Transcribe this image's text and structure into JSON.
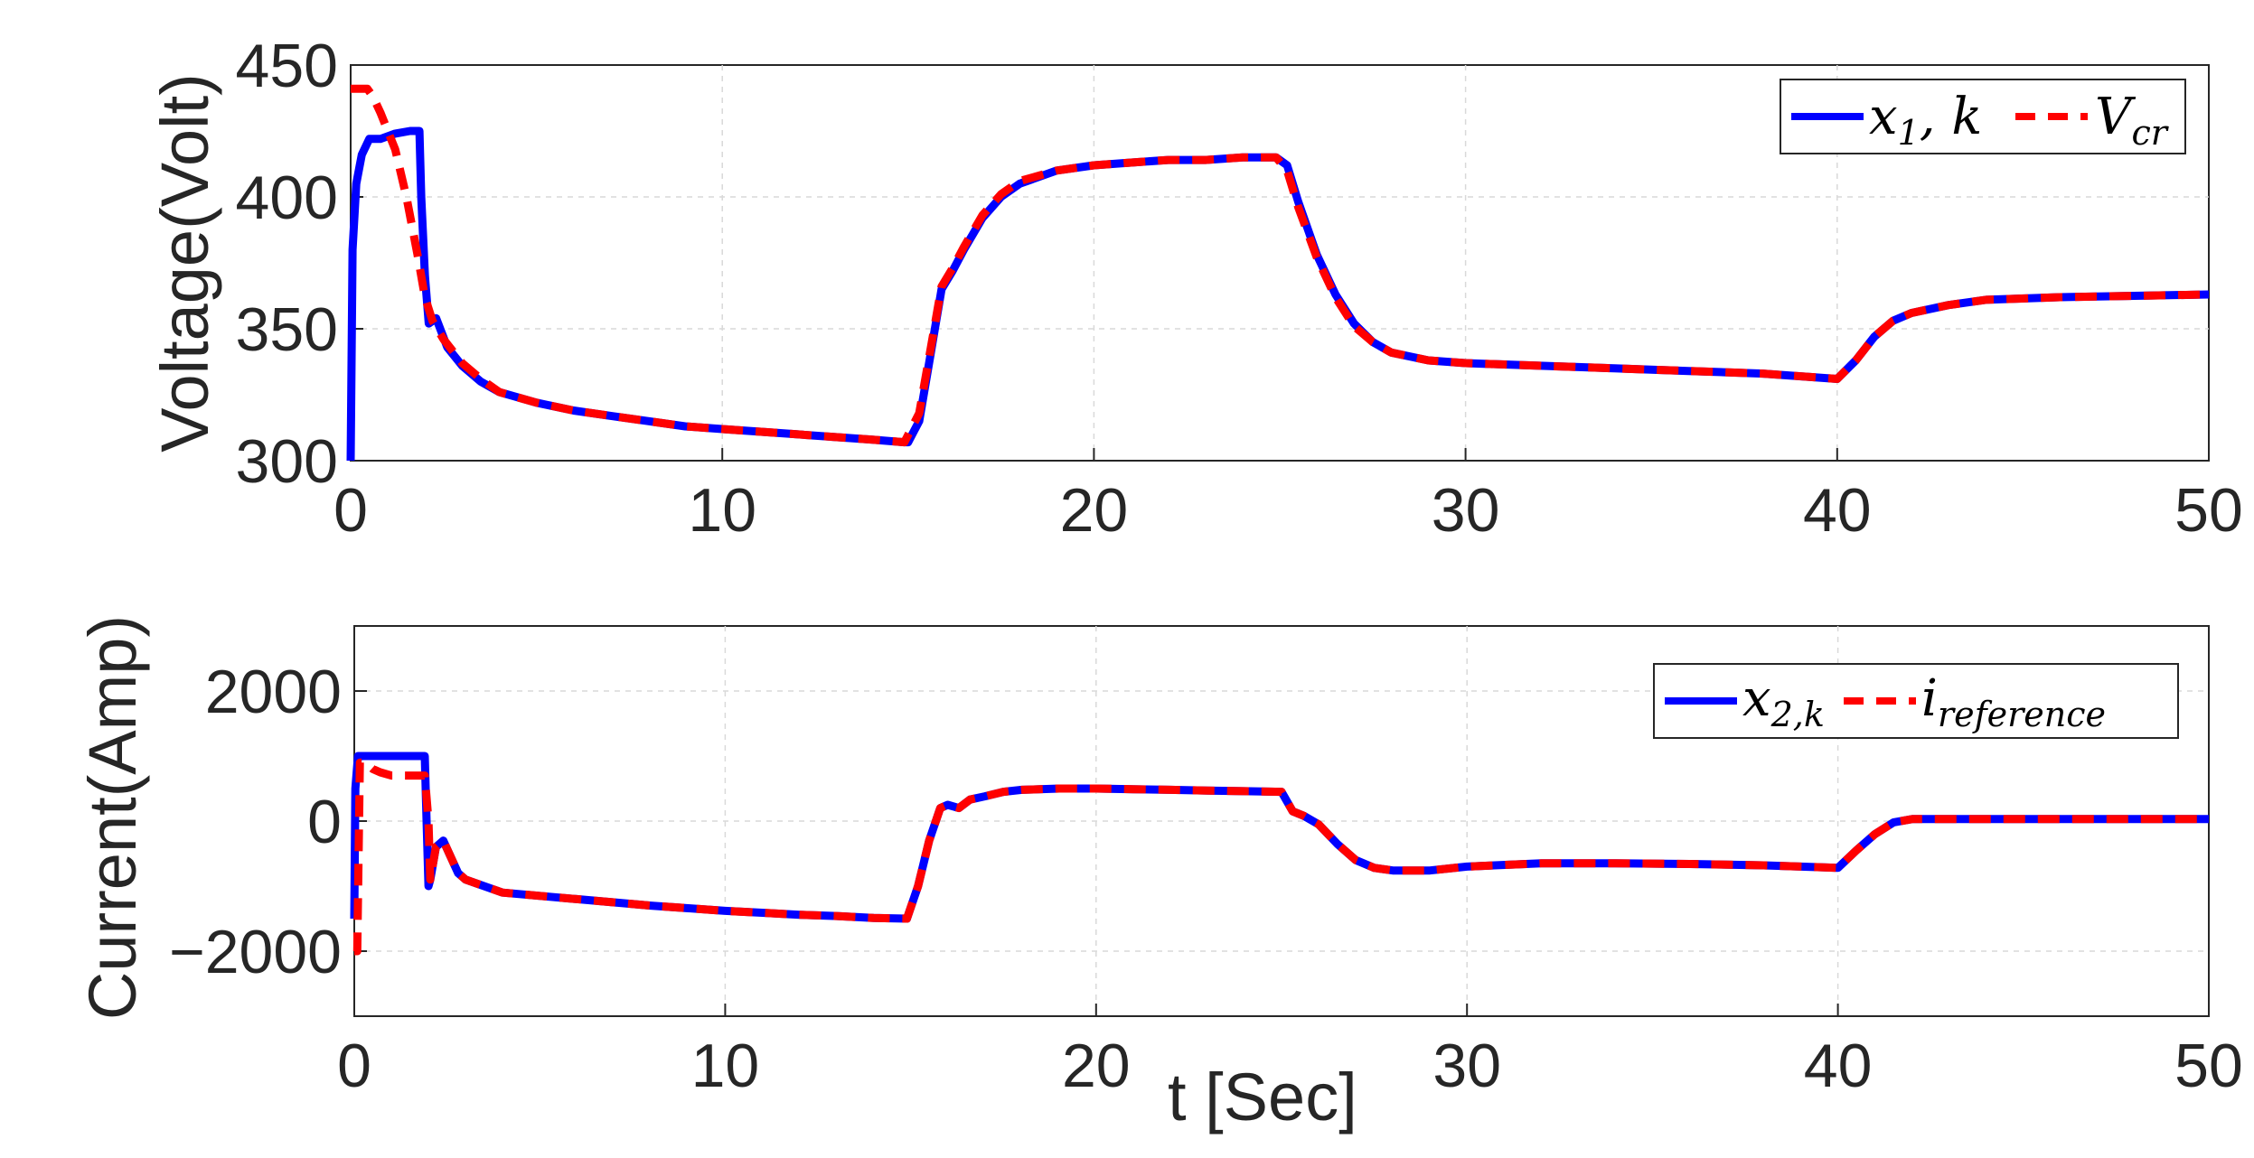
{
  "chart_data": [
    {
      "type": "line",
      "xlabel": "",
      "ylabel": "Voltage(Volt)",
      "xlim": [
        0,
        50
      ],
      "ylim": [
        300,
        450
      ],
      "xticks": [
        "0",
        "10",
        "20",
        "30",
        "40",
        "50"
      ],
      "yticks": [
        "300",
        "350",
        "400",
        "450"
      ],
      "grid": true,
      "legend": "top-right",
      "series": [
        {
          "name": "x1, k",
          "legend_main": "x",
          "legend_sub": "1",
          "legend_tail": ", k",
          "color": "#0000ff",
          "style": "solid",
          "x": [
            0,
            0.05,
            0.15,
            0.3,
            0.5,
            0.8,
            1.2,
            1.6,
            1.85,
            1.9,
            2.0,
            2.1,
            2.3,
            2.6,
            3.0,
            3.5,
            4,
            5,
            6,
            7,
            8,
            9,
            10,
            11,
            12,
            13,
            14,
            14.9,
            15.0,
            15.3,
            15.6,
            15.9,
            16.2,
            16.5,
            17,
            17.5,
            18,
            19,
            20,
            21,
            22,
            23,
            24,
            24.9,
            25.2,
            25.5,
            26,
            26.5,
            27,
            27.5,
            28,
            29,
            30,
            32,
            34,
            36,
            38,
            40,
            40.5,
            41,
            41.5,
            42,
            43,
            44,
            46,
            48,
            50
          ],
          "y": [
            300,
            380,
            405,
            416,
            422,
            422,
            424,
            425,
            425,
            400,
            370,
            352,
            354,
            343,
            336,
            330,
            326,
            322,
            319,
            317,
            315,
            313,
            312,
            311,
            310,
            309,
            308,
            307,
            307,
            315,
            340,
            365,
            372,
            380,
            392,
            400,
            405,
            410,
            412,
            413,
            414,
            414,
            415,
            415,
            412,
            398,
            378,
            363,
            352,
            345,
            341,
            338,
            337,
            336,
            335,
            334,
            333,
            331,
            338,
            347,
            353,
            356,
            359,
            361,
            362,
            362.5,
            363
          ]
        },
        {
          "name": "Vcr",
          "legend_main": "V",
          "legend_sub": "cr",
          "legend_tail": "",
          "color": "#ff0000",
          "style": "dashed",
          "x": [
            0,
            0.45,
            0.6,
            0.8,
            1.0,
            1.2,
            1.5,
            1.8,
            2.0,
            2.2,
            2.5,
            3.0,
            3.5,
            4,
            5,
            6,
            7,
            8,
            9,
            10,
            11,
            12,
            13,
            14,
            14.9,
            15.3,
            15.6,
            15.9,
            16.2,
            16.5,
            17,
            17.5,
            18,
            19,
            20,
            21,
            22,
            23,
            24,
            24.9,
            25.2,
            25.5,
            26,
            26.5,
            27,
            27.5,
            28,
            29,
            30,
            32,
            34,
            36,
            38,
            40,
            40.5,
            41,
            41.5,
            42,
            43,
            44,
            46,
            48,
            50
          ],
          "y": [
            441,
            441,
            438,
            432,
            425,
            418,
            400,
            378,
            362,
            353,
            346,
            337,
            331,
            326,
            322,
            319,
            317,
            315,
            313,
            312,
            311,
            310,
            309,
            308,
            307,
            318,
            342,
            366,
            373,
            381,
            393,
            401,
            406,
            410,
            412,
            413,
            414,
            414,
            415,
            415,
            410,
            396,
            377,
            362,
            351,
            345,
            341,
            338,
            337,
            336,
            335,
            334,
            333,
            331,
            338,
            347,
            353,
            356,
            359,
            361,
            362,
            362.5,
            363
          ]
        }
      ]
    },
    {
      "type": "line",
      "xlabel": "t [Sec]",
      "ylabel": "Current(Amp)",
      "xlim": [
        0,
        50
      ],
      "ylim": [
        -3000,
        3000
      ],
      "xticks": [
        "0",
        "10",
        "20",
        "30",
        "40",
        "50"
      ],
      "yticks": [
        "−2000",
        "0",
        "2000"
      ],
      "ytick_values": [
        -2000,
        0,
        2000
      ],
      "grid": true,
      "legend": "top-right",
      "series": [
        {
          "name": "x2,k",
          "legend_main": "x",
          "legend_sub": "2,k",
          "legend_tail": "",
          "color": "#0000ff",
          "style": "solid",
          "x": [
            0,
            0.03,
            0.1,
            0.5,
            1.0,
            1.5,
            1.9,
            1.95,
            2.0,
            2.05,
            2.2,
            2.4,
            2.6,
            2.8,
            3.0,
            3.5,
            4,
            5,
            6,
            7,
            8,
            9,
            10,
            11,
            12,
            13,
            14,
            14.9,
            15.2,
            15.5,
            15.8,
            16.0,
            16.3,
            16.6,
            17,
            17.5,
            18,
            19,
            20,
            21,
            22,
            23,
            24,
            25.0,
            25.3,
            25.6,
            26,
            26.5,
            27,
            27.5,
            28,
            29,
            30,
            32,
            34,
            36,
            38,
            40,
            40.5,
            41,
            41.5,
            42,
            43,
            44,
            46,
            48,
            50
          ],
          "y": [
            -1500,
            500,
            1000,
            1000,
            1000,
            1000,
            1000,
            0,
            -1000,
            -900,
            -400,
            -300,
            -550,
            -800,
            -900,
            -1000,
            -1100,
            -1150,
            -1200,
            -1250,
            -1300,
            -1340,
            -1380,
            -1410,
            -1440,
            -1460,
            -1490,
            -1500,
            -1000,
            -300,
            200,
            250,
            200,
            330,
            380,
            450,
            480,
            500,
            500,
            490,
            480,
            470,
            460,
            450,
            150,
            80,
            -50,
            -350,
            -600,
            -720,
            -760,
            -760,
            -700,
            -650,
            -650,
            -660,
            -680,
            -720,
            -450,
            -200,
            -20,
            30,
            30,
            30,
            30,
            30,
            30
          ]
        },
        {
          "name": "ireference",
          "legend_main": "i",
          "legend_sub": "reference",
          "legend_tail": "",
          "color": "#ff0000",
          "style": "dashed",
          "x": [
            0,
            0.08,
            0.15,
            0.3,
            0.5,
            0.7,
            1.0,
            1.5,
            1.9,
            2.0,
            2.05,
            2.2,
            2.4,
            2.6,
            2.8,
            3.0,
            3.5,
            4,
            5,
            6,
            7,
            8,
            9,
            10,
            11,
            12,
            13,
            14,
            14.9,
            15.2,
            15.5,
            15.8,
            16.0,
            16.3,
            16.6,
            17,
            17.5,
            18,
            19,
            20,
            21,
            22,
            23,
            24,
            25.0,
            25.3,
            25.6,
            26,
            26.5,
            27,
            27.5,
            28,
            29,
            30,
            32,
            34,
            36,
            38,
            40,
            40.5,
            41,
            41.5,
            42,
            43,
            44,
            46,
            48,
            50
          ],
          "y": [
            -2000,
            -2000,
            900,
            900,
            800,
            750,
            700,
            700,
            700,
            0,
            -900,
            -400,
            -300,
            -550,
            -800,
            -900,
            -1000,
            -1100,
            -1150,
            -1200,
            -1250,
            -1300,
            -1340,
            -1380,
            -1410,
            -1440,
            -1460,
            -1490,
            -1500,
            -1000,
            -300,
            200,
            250,
            200,
            330,
            380,
            450,
            480,
            500,
            500,
            490,
            480,
            470,
            460,
            450,
            150,
            80,
            -50,
            -350,
            -600,
            -720,
            -760,
            -760,
            -700,
            -650,
            -650,
            -660,
            -680,
            -720,
            -450,
            -200,
            -20,
            30,
            30,
            30,
            30,
            30,
            30
          ]
        }
      ]
    }
  ]
}
